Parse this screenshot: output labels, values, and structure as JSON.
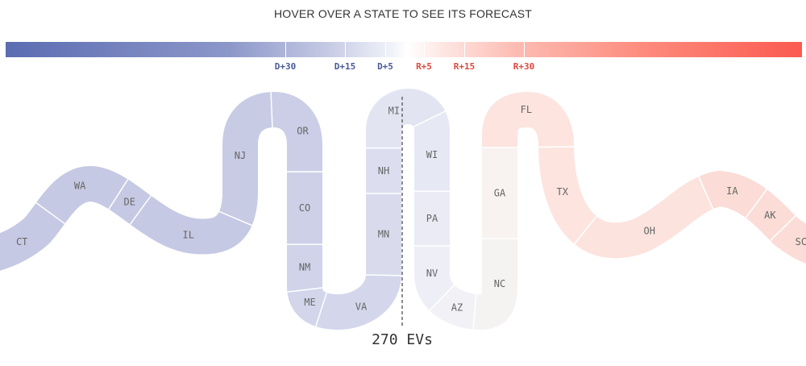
{
  "header": {
    "instruction": "HOVER OVER A STATE TO SEE ITS FORECAST"
  },
  "scale": {
    "ticks": [
      {
        "label": "D+30",
        "color": "#4a5a99"
      },
      {
        "label": "D+15",
        "color": "#4a5a99"
      },
      {
        "label": "D+5",
        "color": "#4a5a99"
      },
      {
        "label": "R+5",
        "color": "#e0483e"
      },
      {
        "label": "R+15",
        "color": "#e0483e"
      },
      {
        "label": "R+30",
        "color": "#e0483e"
      }
    ]
  },
  "states": [
    {
      "abbr": "CT",
      "lean": "D",
      "color": "#c6c9e3"
    },
    {
      "abbr": "WA",
      "lean": "D",
      "color": "#c6c9e3"
    },
    {
      "abbr": "DE",
      "lean": "D",
      "color": "#c6c9e3"
    },
    {
      "abbr": "IL",
      "lean": "D",
      "color": "#c6c9e3"
    },
    {
      "abbr": "NJ",
      "lean": "D",
      "color": "#c8cbe4"
    },
    {
      "abbr": "OR",
      "lean": "D",
      "color": "#cbcee6"
    },
    {
      "abbr": "CO",
      "lean": "D",
      "color": "#cdd0e7"
    },
    {
      "abbr": "NM",
      "lean": "D",
      "color": "#d0d3e9"
    },
    {
      "abbr": "ME",
      "lean": "D",
      "color": "#d3d6ea"
    },
    {
      "abbr": "VA",
      "lean": "D",
      "color": "#d4d7eb"
    },
    {
      "abbr": "MN",
      "lean": "D",
      "color": "#d9dbed"
    },
    {
      "abbr": "NH",
      "lean": "D",
      "color": "#dcdef0"
    },
    {
      "abbr": "MI",
      "lean": "D",
      "color": "#e2e4f2"
    },
    {
      "abbr": "WI",
      "lean": "D",
      "color": "#e6e8f4"
    },
    {
      "abbr": "PA",
      "lean": "D",
      "color": "#eaebf5"
    },
    {
      "abbr": "NV",
      "lean": "D",
      "color": "#eeeff6"
    },
    {
      "abbr": "AZ",
      "lean": "D",
      "color": "#f1f1f6"
    },
    {
      "abbr": "NC",
      "lean": "R",
      "color": "#f5f3f2"
    },
    {
      "abbr": "GA",
      "lean": "R",
      "color": "#f8f2f0"
    },
    {
      "abbr": "FL",
      "lean": "R",
      "color": "#fde4df"
    },
    {
      "abbr": "TX",
      "lean": "R",
      "color": "#fde4df"
    },
    {
      "abbr": "OH",
      "lean": "R",
      "color": "#fce3de"
    },
    {
      "abbr": "IA",
      "lean": "R",
      "color": "#fbdcd6"
    },
    {
      "abbr": "AK",
      "lean": "R",
      "color": "#fbdcd6"
    },
    {
      "abbr": "SC",
      "lean": "R",
      "color": "#fbdcd6"
    }
  ],
  "midline": {
    "label": "270 EVs"
  }
}
